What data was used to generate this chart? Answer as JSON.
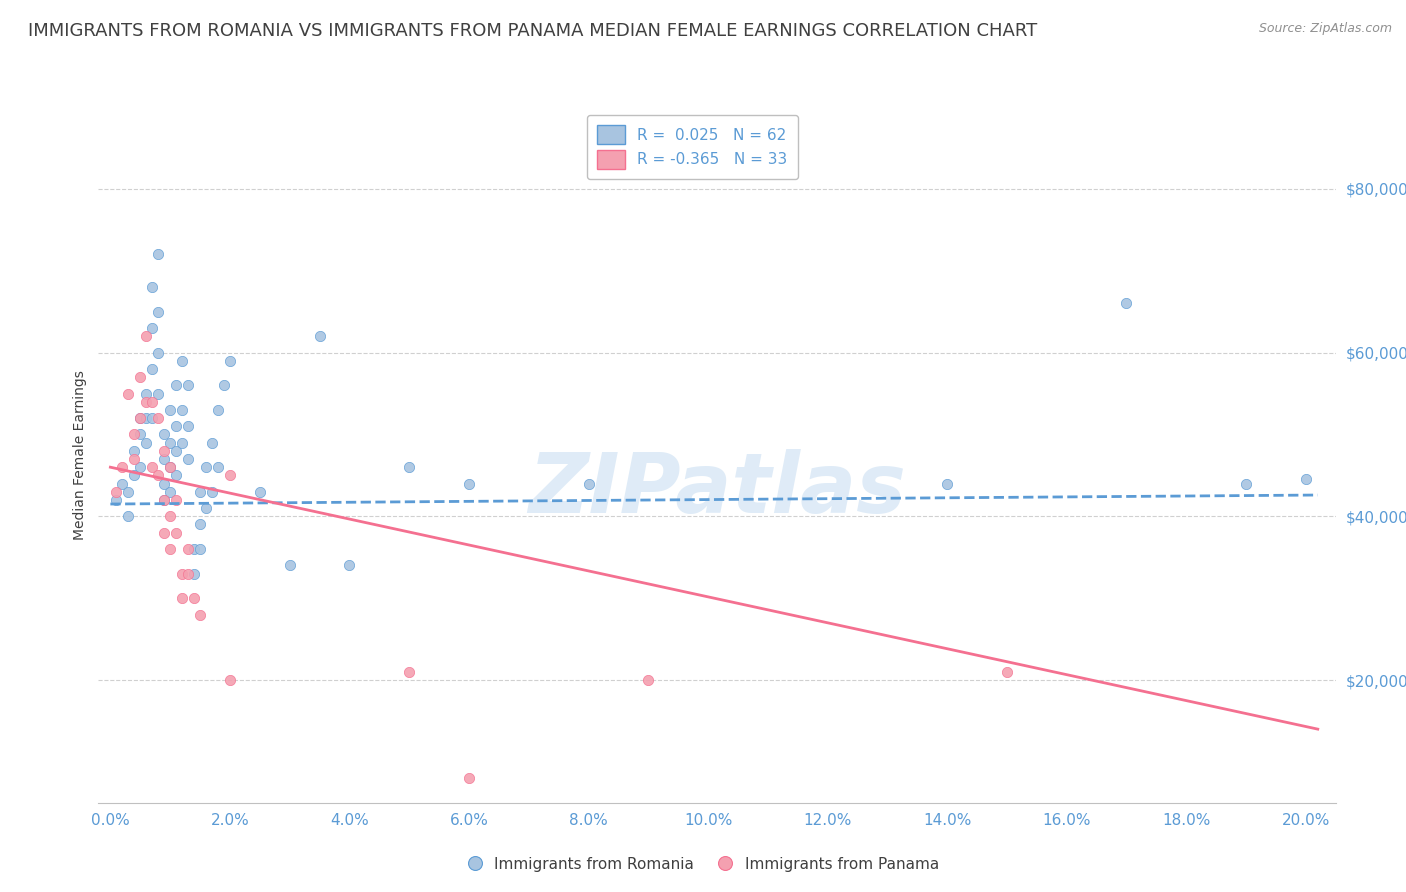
{
  "title": "IMMIGRANTS FROM ROMANIA VS IMMIGRANTS FROM PANAMA MEDIAN FEMALE EARNINGS CORRELATION CHART",
  "source": "Source: ZipAtlas.com",
  "ylabel": "Median Female Earnings",
  "ytick_labels": [
    "$20,000",
    "$40,000",
    "$60,000",
    "$80,000"
  ],
  "ytick_values": [
    20000,
    40000,
    60000,
    80000
  ],
  "ylim": [
    5000,
    90000
  ],
  "xlim": [
    -0.002,
    0.205
  ],
  "romania_R": 0.025,
  "romania_N": 62,
  "panama_R": -0.365,
  "panama_N": 33,
  "romania_color": "#a8c4e0",
  "panama_color": "#f4a0b0",
  "romania_line_color": "#5b9bd5",
  "panama_line_color": "#f47090",
  "title_color": "#404040",
  "axis_label_color": "#5b9bd5",
  "legend_R_color": "#5b9bd5",
  "watermark": "ZIPatlas",
  "romania_scatter": [
    [
      0.001,
      42000
    ],
    [
      0.002,
      44000
    ],
    [
      0.003,
      40000
    ],
    [
      0.003,
      43000
    ],
    [
      0.004,
      48000
    ],
    [
      0.004,
      45000
    ],
    [
      0.005,
      52000
    ],
    [
      0.005,
      50000
    ],
    [
      0.005,
      46000
    ],
    [
      0.006,
      55000
    ],
    [
      0.006,
      52000
    ],
    [
      0.006,
      49000
    ],
    [
      0.007,
      68000
    ],
    [
      0.007,
      63000
    ],
    [
      0.007,
      58000
    ],
    [
      0.007,
      52000
    ],
    [
      0.008,
      72000
    ],
    [
      0.008,
      65000
    ],
    [
      0.008,
      60000
    ],
    [
      0.008,
      55000
    ],
    [
      0.009,
      50000
    ],
    [
      0.009,
      47000
    ],
    [
      0.009,
      44000
    ],
    [
      0.009,
      42000
    ],
    [
      0.01,
      53000
    ],
    [
      0.01,
      49000
    ],
    [
      0.01,
      46000
    ],
    [
      0.01,
      43000
    ],
    [
      0.011,
      56000
    ],
    [
      0.011,
      51000
    ],
    [
      0.011,
      48000
    ],
    [
      0.011,
      45000
    ],
    [
      0.012,
      59000
    ],
    [
      0.012,
      53000
    ],
    [
      0.012,
      49000
    ],
    [
      0.013,
      56000
    ],
    [
      0.013,
      51000
    ],
    [
      0.013,
      47000
    ],
    [
      0.014,
      36000
    ],
    [
      0.014,
      33000
    ],
    [
      0.015,
      43000
    ],
    [
      0.015,
      39000
    ],
    [
      0.015,
      36000
    ],
    [
      0.016,
      46000
    ],
    [
      0.016,
      41000
    ],
    [
      0.017,
      49000
    ],
    [
      0.017,
      43000
    ],
    [
      0.018,
      53000
    ],
    [
      0.018,
      46000
    ],
    [
      0.019,
      56000
    ],
    [
      0.02,
      59000
    ],
    [
      0.025,
      43000
    ],
    [
      0.03,
      34000
    ],
    [
      0.035,
      62000
    ],
    [
      0.04,
      34000
    ],
    [
      0.05,
      46000
    ],
    [
      0.06,
      44000
    ],
    [
      0.08,
      44000
    ],
    [
      0.14,
      44000
    ],
    [
      0.17,
      66000
    ],
    [
      0.19,
      44000
    ],
    [
      0.2,
      44500
    ]
  ],
  "panama_scatter": [
    [
      0.001,
      43000
    ],
    [
      0.002,
      46000
    ],
    [
      0.003,
      55000
    ],
    [
      0.004,
      50000
    ],
    [
      0.004,
      47000
    ],
    [
      0.005,
      57000
    ],
    [
      0.005,
      52000
    ],
    [
      0.006,
      62000
    ],
    [
      0.006,
      54000
    ],
    [
      0.007,
      54000
    ],
    [
      0.007,
      46000
    ],
    [
      0.008,
      52000
    ],
    [
      0.008,
      45000
    ],
    [
      0.009,
      48000
    ],
    [
      0.009,
      42000
    ],
    [
      0.009,
      38000
    ],
    [
      0.01,
      46000
    ],
    [
      0.01,
      40000
    ],
    [
      0.01,
      36000
    ],
    [
      0.011,
      42000
    ],
    [
      0.011,
      38000
    ],
    [
      0.012,
      33000
    ],
    [
      0.012,
      30000
    ],
    [
      0.013,
      36000
    ],
    [
      0.013,
      33000
    ],
    [
      0.014,
      30000
    ],
    [
      0.015,
      28000
    ],
    [
      0.02,
      45000
    ],
    [
      0.02,
      20000
    ],
    [
      0.05,
      21000
    ],
    [
      0.09,
      20000
    ],
    [
      0.15,
      21000
    ],
    [
      0.06,
      8000
    ]
  ],
  "romania_trendline": [
    [
      0.0,
      41500
    ],
    [
      0.202,
      42600
    ]
  ],
  "panama_trendline": [
    [
      0.0,
      46000
    ],
    [
      0.202,
      14000
    ]
  ],
  "background_color": "#ffffff",
  "grid_color": "#d0d0d0",
  "title_fontsize": 13,
  "axis_fontsize": 11,
  "xtick_values": [
    0.0,
    0.02,
    0.04,
    0.06,
    0.08,
    0.1,
    0.12,
    0.14,
    0.16,
    0.18,
    0.2
  ],
  "xtick_labels": [
    "0.0%",
    "2.0%",
    "4.0%",
    "6.0%",
    "8.0%",
    "10.0%",
    "12.0%",
    "14.0%",
    "16.0%",
    "18.0%",
    "20.0%"
  ]
}
